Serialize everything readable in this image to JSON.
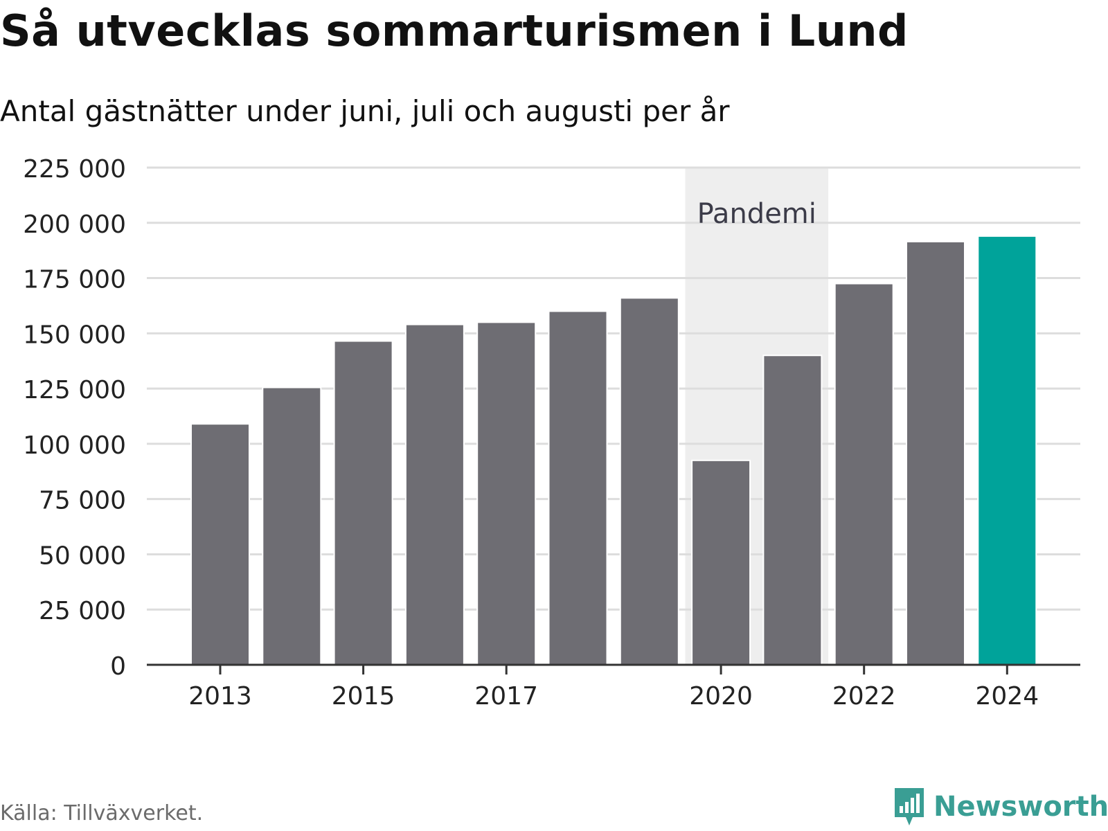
{
  "header": {
    "title": "Så utvecklas sommarturismen i Lund",
    "subtitle": "Antal gästnätter under juni, juli och augusti per år"
  },
  "footer": {
    "source": "Källa: Tillväxverket.",
    "brand": "Newsworthy"
  },
  "colors": {
    "bar": "#6e6d73",
    "highlight": "#00a39a",
    "band": "#eeeeee",
    "grid": "#dddddd",
    "brand": "#3a9e94"
  },
  "chart_data": {
    "type": "bar",
    "categories": [
      "2013",
      "2014",
      "2015",
      "2016",
      "2017",
      "2018",
      "2019",
      "2020",
      "2021",
      "2022",
      "2023",
      "2024"
    ],
    "values": [
      109000,
      125500,
      146500,
      154000,
      155000,
      160000,
      166000,
      92500,
      140000,
      172500,
      191500,
      194000
    ],
    "x_tick_labels": [
      "2013",
      "2015",
      "2017",
      "2020",
      "2022",
      "2024"
    ],
    "y_ticks": [
      0,
      25000,
      50000,
      75000,
      100000,
      125000,
      150000,
      175000,
      200000,
      225000
    ],
    "y_tick_labels": [
      "0",
      "25 000",
      "50 000",
      "75 000",
      "100 000",
      "125 000",
      "150 000",
      "175 000",
      "200 000",
      "225 000"
    ],
    "ylim": [
      0,
      225000
    ],
    "highlight_category": "2024",
    "annotation": {
      "label": "Pandemi",
      "from": "2020",
      "to": "2021"
    },
    "grid": true
  }
}
